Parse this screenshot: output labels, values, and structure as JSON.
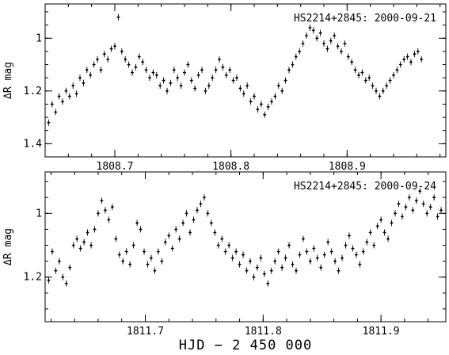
{
  "xaxis_title": "HJD − 2 450 000",
  "chart_data": [
    {
      "type": "scatter",
      "title": "",
      "annotation": "HS2214+2845: 2000-09-21",
      "ylabel": "ΔR mag",
      "xlim": [
        1808.64,
        1808.985
      ],
      "ylim": [
        1.45,
        0.87
      ],
      "y_inverted": true,
      "x_ticks": [
        1808.7,
        1808.8,
        1808.9
      ],
      "x_tick_labels": [
        "1808.7",
        "1808.8",
        "1808.9"
      ],
      "y_ticks": [
        1.0,
        1.2,
        1.4
      ],
      "y_tick_labels": [
        "1",
        "1.2",
        "1.4"
      ],
      "error_bars": true,
      "series": [
        {
          "x": [
            1808.643,
            1808.646,
            1808.649,
            1808.652,
            1808.655,
            1808.658,
            1808.661,
            1808.664,
            1808.667,
            1808.67,
            1808.673,
            1808.676,
            1808.679,
            1808.682,
            1808.685,
            1808.688,
            1808.691,
            1808.694,
            1808.697,
            1808.7,
            1808.703,
            1808.706,
            1808.709,
            1808.712,
            1808.715,
            1808.718,
            1808.721,
            1808.724,
            1808.727,
            1808.73,
            1808.733,
            1808.736,
            1808.739,
            1808.742,
            1808.745,
            1808.748,
            1808.751,
            1808.754,
            1808.757,
            1808.76,
            1808.763,
            1808.766,
            1808.769,
            1808.772,
            1808.775,
            1808.778,
            1808.781,
            1808.784,
            1808.787,
            1808.79,
            1808.793,
            1808.796,
            1808.799,
            1808.802,
            1808.805,
            1808.808,
            1808.811,
            1808.814,
            1808.817,
            1808.82,
            1808.823,
            1808.826,
            1808.829,
            1808.832,
            1808.835,
            1808.838,
            1808.841,
            1808.844,
            1808.847,
            1808.85,
            1808.853,
            1808.856,
            1808.859,
            1808.862,
            1808.865,
            1808.868,
            1808.871,
            1808.874,
            1808.877,
            1808.88,
            1808.883,
            1808.886,
            1808.889,
            1808.892,
            1808.895,
            1808.898,
            1808.901,
            1808.904,
            1808.907,
            1808.91,
            1808.913,
            1808.916,
            1808.919,
            1808.922,
            1808.925,
            1808.928,
            1808.931,
            1808.934,
            1808.937,
            1808.94,
            1808.943,
            1808.946,
            1808.949,
            1808.952,
            1808.955,
            1808.958,
            1808.961,
            1808.964
          ],
          "y": [
            1.32,
            1.25,
            1.28,
            1.22,
            1.24,
            1.2,
            1.22,
            1.18,
            1.21,
            1.15,
            1.17,
            1.12,
            1.14,
            1.1,
            1.08,
            1.12,
            1.06,
            1.08,
            1.04,
            1.03,
            0.92,
            1.05,
            1.08,
            1.1,
            1.13,
            1.11,
            1.07,
            1.09,
            1.12,
            1.15,
            1.13,
            1.14,
            1.18,
            1.16,
            1.2,
            1.17,
            1.12,
            1.15,
            1.18,
            1.13,
            1.1,
            1.16,
            1.19,
            1.14,
            1.12,
            1.2,
            1.18,
            1.15,
            1.12,
            1.08,
            1.11,
            1.14,
            1.12,
            1.16,
            1.15,
            1.19,
            1.21,
            1.18,
            1.24,
            1.22,
            1.27,
            1.25,
            1.29,
            1.26,
            1.24,
            1.22,
            1.18,
            1.2,
            1.16,
            1.12,
            1.1,
            1.07,
            1.05,
            1.02,
            0.99,
            0.96,
            0.97,
            1.0,
            0.98,
            1.02,
            1.04,
            1.01,
            0.99,
            1.03,
            1.05,
            1.02,
            1.07,
            1.09,
            1.12,
            1.14,
            1.13,
            1.16,
            1.15,
            1.18,
            1.2,
            1.22,
            1.2,
            1.18,
            1.16,
            1.14,
            1.12,
            1.1,
            1.08,
            1.07,
            1.09,
            1.06,
            1.05,
            1.08
          ]
        }
      ]
    },
    {
      "type": "scatter",
      "title": "",
      "annotation": "HS2214+2845: 2000-09-24",
      "ylabel": "ΔR mag",
      "xlim": [
        1811.615,
        1811.955
      ],
      "ylim": [
        1.34,
        0.87
      ],
      "y_inverted": true,
      "x_ticks": [
        1811.7,
        1811.8,
        1811.9
      ],
      "x_tick_labels": [
        "1811.7",
        "1811.8",
        "1811.9"
      ],
      "y_ticks": [
        1.0,
        1.2
      ],
      "y_tick_labels": [
        "1",
        "1.2"
      ],
      "error_bars": true,
      "series": [
        {
          "x": [
            1811.618,
            1811.621,
            1811.624,
            1811.627,
            1811.63,
            1811.633,
            1811.636,
            1811.639,
            1811.642,
            1811.645,
            1811.648,
            1811.651,
            1811.654,
            1811.657,
            1811.66,
            1811.663,
            1811.666,
            1811.669,
            1811.672,
            1811.675,
            1811.678,
            1811.681,
            1811.684,
            1811.687,
            1811.69,
            1811.693,
            1811.696,
            1811.699,
            1811.702,
            1811.705,
            1811.708,
            1811.711,
            1811.714,
            1811.717,
            1811.72,
            1811.723,
            1811.726,
            1811.729,
            1811.732,
            1811.735,
            1811.738,
            1811.741,
            1811.744,
            1811.747,
            1811.75,
            1811.753,
            1811.756,
            1811.759,
            1811.762,
            1811.765,
            1811.768,
            1811.771,
            1811.774,
            1811.777,
            1811.78,
            1811.783,
            1811.786,
            1811.789,
            1811.792,
            1811.795,
            1811.798,
            1811.801,
            1811.804,
            1811.807,
            1811.81,
            1811.813,
            1811.816,
            1811.819,
            1811.822,
            1811.825,
            1811.828,
            1811.831,
            1811.834,
            1811.837,
            1811.84,
            1811.843,
            1811.846,
            1811.849,
            1811.852,
            1811.855,
            1811.858,
            1811.861,
            1811.864,
            1811.867,
            1811.87,
            1811.873,
            1811.876,
            1811.879,
            1811.882,
            1811.885,
            1811.888,
            1811.891,
            1811.894,
            1811.897,
            1811.9,
            1811.903,
            1811.906,
            1811.909,
            1811.912,
            1811.915,
            1811.918,
            1811.921,
            1811.924,
            1811.927,
            1811.93,
            1811.933,
            1811.936,
            1811.939,
            1811.942,
            1811.945,
            1811.948,
            1811.951
          ],
          "y": [
            1.21,
            1.12,
            1.18,
            1.15,
            1.2,
            1.22,
            1.17,
            1.1,
            1.08,
            1.11,
            1.09,
            1.06,
            1.1,
            1.05,
            1.0,
            0.96,
            0.99,
            1.02,
            0.98,
            1.08,
            1.13,
            1.15,
            1.12,
            1.16,
            1.1,
            1.03,
            1.05,
            1.12,
            1.16,
            1.14,
            1.18,
            1.12,
            1.15,
            1.09,
            1.07,
            1.11,
            1.05,
            1.08,
            1.03,
            1.0,
            1.06,
            1.02,
            0.99,
            0.97,
            0.95,
            1.0,
            1.03,
            1.06,
            1.1,
            1.08,
            1.12,
            1.1,
            1.14,
            1.12,
            1.16,
            1.13,
            1.18,
            1.15,
            1.2,
            1.17,
            1.14,
            1.19,
            1.22,
            1.18,
            1.15,
            1.12,
            1.17,
            1.14,
            1.1,
            1.16,
            1.18,
            1.13,
            1.08,
            1.12,
            1.15,
            1.11,
            1.14,
            1.17,
            1.13,
            1.09,
            1.12,
            1.15,
            1.18,
            1.14,
            1.1,
            1.07,
            1.11,
            1.13,
            1.16,
            1.12,
            1.09,
            1.06,
            1.1,
            1.04,
            1.02,
            1.06,
            1.08,
            1.03,
            1.0,
            0.97,
            1.01,
            0.98,
            0.95,
            0.99,
            0.96,
            0.93,
            0.97,
            1.0,
            0.98,
            0.95,
            1.01,
            0.99
          ]
        }
      ]
    }
  ]
}
